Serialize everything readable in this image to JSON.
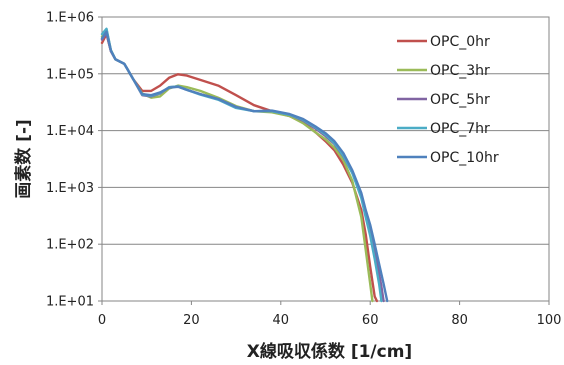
{
  "chart_data": {
    "type": "line",
    "title": "",
    "xlabel": "X線吸収係数 [1/cm]",
    "ylabel": "画素数 [-]",
    "y_scale": "log",
    "xlim": [
      0,
      100
    ],
    "ylim": [
      10,
      1000000
    ],
    "x_ticks": [
      0,
      20,
      40,
      60,
      80,
      100
    ],
    "x_tick_labels": [
      "0",
      "20",
      "40",
      "60",
      "80",
      "100"
    ],
    "y_ticks": [
      10,
      100,
      1000,
      10000,
      100000,
      1000000
    ],
    "y_tick_labels": [
      "1.E+01",
      "1.E+02",
      "1.E+03",
      "1.E+04",
      "1.E+05",
      "1.E+06"
    ],
    "grid": "horizontal",
    "legend_position": "top-right",
    "series": [
      {
        "name": "OPC_0hr",
        "color": "#C0504D",
        "points": [
          [
            0,
            350000
          ],
          [
            1,
            500000
          ],
          [
            2,
            250000
          ],
          [
            3,
            180000
          ],
          [
            5,
            150000
          ],
          [
            7,
            80000
          ],
          [
            9,
            50000
          ],
          [
            11,
            50000
          ],
          [
            13,
            62000
          ],
          [
            15,
            85000
          ],
          [
            17,
            98000
          ],
          [
            19,
            93000
          ],
          [
            22,
            78000
          ],
          [
            26,
            62000
          ],
          [
            30,
            42000
          ],
          [
            34,
            28000
          ],
          [
            38,
            22000
          ],
          [
            42,
            18000
          ],
          [
            45,
            14000
          ],
          [
            48,
            9000
          ],
          [
            50,
            6500
          ],
          [
            52,
            4500
          ],
          [
            54,
            2500
          ],
          [
            56,
            1200
          ],
          [
            58,
            400
          ],
          [
            59,
            150
          ],
          [
            60,
            40
          ],
          [
            61,
            12
          ],
          [
            61.5,
            10
          ]
        ]
      },
      {
        "name": "OPC_3hr",
        "color": "#9BBB59",
        "points": [
          [
            0,
            450000
          ],
          [
            1,
            600000
          ],
          [
            2,
            260000
          ],
          [
            3,
            180000
          ],
          [
            5,
            150000
          ],
          [
            7,
            80000
          ],
          [
            9,
            45000
          ],
          [
            11,
            38000
          ],
          [
            13,
            40000
          ],
          [
            15,
            55000
          ],
          [
            17,
            62000
          ],
          [
            19,
            58000
          ],
          [
            22,
            50000
          ],
          [
            26,
            38000
          ],
          [
            30,
            27000
          ],
          [
            34,
            22000
          ],
          [
            38,
            21000
          ],
          [
            42,
            18000
          ],
          [
            45,
            13500
          ],
          [
            48,
            9000
          ],
          [
            50,
            7000
          ],
          [
            52,
            5000
          ],
          [
            54,
            3000
          ],
          [
            56,
            1300
          ],
          [
            58,
            300
          ],
          [
            59,
            80
          ],
          [
            60,
            20
          ],
          [
            60.5,
            10
          ]
        ]
      },
      {
        "name": "OPC_5hr",
        "color": "#8064A2",
        "points": [
          [
            0,
            400000
          ],
          [
            1,
            520000
          ],
          [
            2,
            250000
          ],
          [
            3,
            180000
          ],
          [
            5,
            150000
          ],
          [
            7,
            80000
          ],
          [
            9,
            42000
          ],
          [
            11,
            40000
          ],
          [
            13,
            45000
          ],
          [
            15,
            58000
          ],
          [
            17,
            60000
          ],
          [
            19,
            52000
          ],
          [
            22,
            44000
          ],
          [
            26,
            36000
          ],
          [
            30,
            26000
          ],
          [
            34,
            22000
          ],
          [
            38,
            22000
          ],
          [
            42,
            19000
          ],
          [
            45,
            15000
          ],
          [
            48,
            10500
          ],
          [
            50,
            8000
          ],
          [
            52,
            5800
          ],
          [
            54,
            3500
          ],
          [
            56,
            1800
          ],
          [
            58,
            700
          ],
          [
            59,
            350
          ],
          [
            60,
            180
          ],
          [
            61,
            80
          ],
          [
            62,
            30
          ],
          [
            62.5,
            18
          ],
          [
            63,
            10
          ]
        ]
      },
      {
        "name": "OPC_7hr",
        "color": "#4BACC6",
        "points": [
          [
            0,
            500000
          ],
          [
            1,
            620000
          ],
          [
            2,
            260000
          ],
          [
            3,
            180000
          ],
          [
            5,
            150000
          ],
          [
            7,
            80000
          ],
          [
            9,
            43000
          ],
          [
            11,
            41000
          ],
          [
            13,
            46000
          ],
          [
            15,
            58000
          ],
          [
            17,
            60000
          ],
          [
            19,
            52000
          ],
          [
            22,
            43000
          ],
          [
            26,
            35000
          ],
          [
            30,
            25000
          ],
          [
            34,
            22000
          ],
          [
            38,
            22000
          ],
          [
            42,
            19000
          ],
          [
            45,
            15500
          ],
          [
            48,
            11000
          ],
          [
            50,
            8500
          ],
          [
            52,
            6000
          ],
          [
            54,
            3600
          ],
          [
            56,
            1800
          ],
          [
            58,
            650
          ],
          [
            59,
            300
          ],
          [
            60,
            140
          ],
          [
            61,
            55
          ],
          [
            62,
            20
          ],
          [
            62.5,
            10
          ]
        ]
      },
      {
        "name": "OPC_10hr",
        "color": "#4F81BD",
        "points": [
          [
            0,
            420000
          ],
          [
            1,
            550000
          ],
          [
            2,
            255000
          ],
          [
            3,
            180000
          ],
          [
            5,
            150000
          ],
          [
            7,
            80000
          ],
          [
            9,
            44000
          ],
          [
            11,
            42000
          ],
          [
            13,
            47000
          ],
          [
            15,
            57000
          ],
          [
            17,
            59000
          ],
          [
            19,
            52000
          ],
          [
            22,
            44000
          ],
          [
            26,
            36000
          ],
          [
            30,
            26000
          ],
          [
            34,
            22000
          ],
          [
            38,
            22500
          ],
          [
            42,
            19500
          ],
          [
            45,
            16000
          ],
          [
            48,
            11500
          ],
          [
            50,
            9000
          ],
          [
            52,
            6500
          ],
          [
            54,
            4000
          ],
          [
            56,
            2000
          ],
          [
            58,
            800
          ],
          [
            59,
            400
          ],
          [
            60,
            220
          ],
          [
            61,
            100
          ],
          [
            62,
            45
          ],
          [
            63,
            20
          ],
          [
            63.8,
            10
          ]
        ]
      }
    ]
  }
}
